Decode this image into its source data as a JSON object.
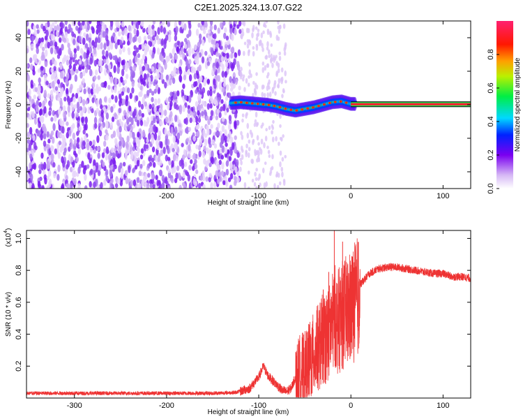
{
  "chart_data": [
    {
      "type": "heatmap",
      "title": "C2E1.2025.324.13.07.G22",
      "xlabel": "Height of straight line (km)",
      "ylabel": "Frequency (Hz)",
      "xlim": [
        -352,
        130
      ],
      "ylim": [
        -50,
        50
      ],
      "xticks": [
        "-300",
        "-200",
        "-100",
        "0",
        "100"
      ],
      "xtick_values": [
        -300,
        -200,
        -100,
        0,
        100
      ],
      "yticks": [
        "-40",
        "-20",
        "0",
        "20",
        "40"
      ],
      "ytick_values": [
        -40,
        -20,
        0,
        20,
        40
      ],
      "colorbar": {
        "label": "Normalized spectral amplitude",
        "ticks": [
          "0.0",
          "0.2",
          "0.4",
          "0.6",
          "0.8"
        ],
        "tick_values": [
          0.0,
          0.2,
          0.4,
          0.6,
          0.8
        ],
        "range": [
          0,
          1
        ]
      },
      "ridge": {
        "description_x": [
          -130,
          -120,
          -110,
          -100,
          -90,
          -80,
          -70,
          -60,
          -50,
          -40,
          -30,
          -20,
          -10,
          0,
          130
        ],
        "frequency_hz": [
          1,
          1.5,
          1,
          0.5,
          0,
          -1,
          -2.5,
          -3.5,
          -2.5,
          -1.5,
          0,
          1.5,
          2,
          0.5,
          0.3
        ]
      },
      "noise_region_x": [
        -352,
        -120
      ],
      "sparse_region_x": [
        -120,
        -70
      ]
    },
    {
      "type": "line",
      "xlabel": "Height of straight line (km)",
      "ylabel": "SNR (10 * v/v)",
      "scale_label": "(x10",
      "scale_exponent": "4",
      "xlim": [
        -352,
        130
      ],
      "ylim": [
        0,
        1.05
      ],
      "xticks": [
        "-300",
        "-200",
        "-100",
        "0",
        "100"
      ],
      "xtick_values": [
        -300,
        -200,
        -100,
        0,
        100
      ],
      "yticks": [
        "0.2",
        "0.4",
        "0.6",
        "0.8",
        "1.0"
      ],
      "ytick_values": [
        0.2,
        0.4,
        0.6,
        0.8,
        1.0
      ],
      "series": [
        {
          "name": "SNR",
          "color": "#ee3333",
          "x": [
            -352,
            -300,
            -250,
            -200,
            -150,
            -125,
            -110,
            -100,
            -95,
            -90,
            -80,
            -75,
            -70,
            -65,
            -55,
            -50,
            -45,
            -40,
            -35,
            -30,
            -25,
            -20,
            -17,
            -15,
            -10,
            -5,
            0,
            5,
            10,
            20,
            30,
            40,
            50,
            60,
            70,
            80,
            90,
            100,
            110,
            120,
            130
          ],
          "values": [
            0.03,
            0.03,
            0.03,
            0.03,
            0.03,
            0.035,
            0.06,
            0.13,
            0.2,
            0.14,
            0.08,
            0.05,
            0.04,
            0.06,
            0.2,
            0.2,
            0.25,
            0.3,
            0.35,
            0.4,
            0.43,
            0.5,
            0.55,
            0.5,
            0.55,
            0.58,
            0.6,
            0.65,
            0.71,
            0.78,
            0.81,
            0.82,
            0.82,
            0.81,
            0.8,
            0.79,
            0.78,
            0.78,
            0.76,
            0.76,
            0.75
          ]
        }
      ],
      "spikes": [
        {
          "x": -30,
          "value": 0.68
        },
        {
          "x": -24,
          "value": 0.79
        },
        {
          "x": -18,
          "value": 1.05
        },
        {
          "x": -9,
          "value": 0.98
        },
        {
          "x": -37,
          "value": 0.55
        },
        {
          "x": -42,
          "value": 0.42
        }
      ]
    }
  ]
}
